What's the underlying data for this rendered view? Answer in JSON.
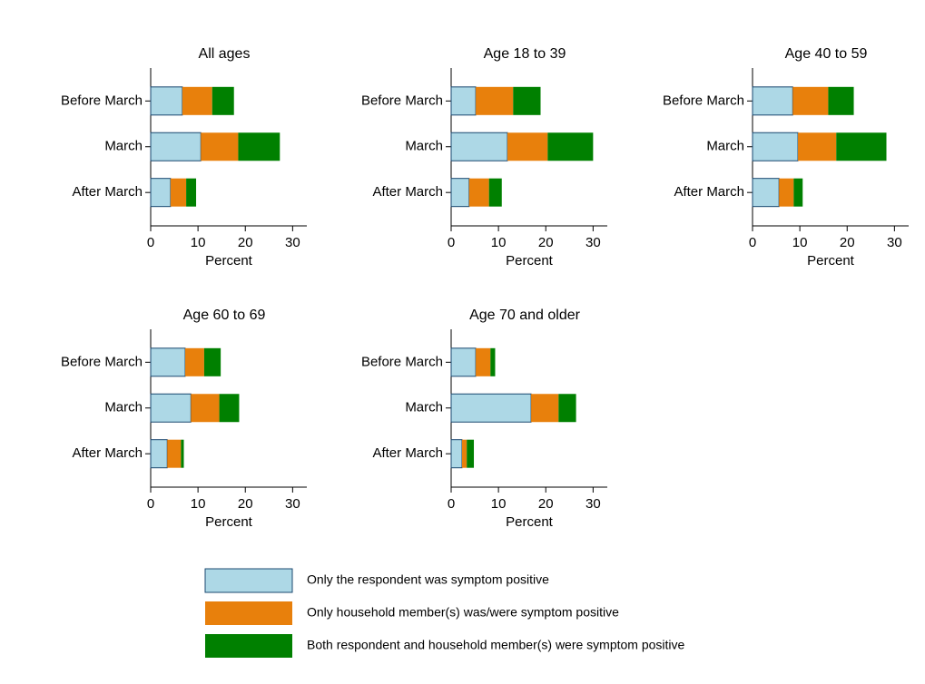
{
  "legend": [
    {
      "name": "Only the respondent was symptom positive",
      "color": "#add8e6",
      "stroke": "#1a476f"
    },
    {
      "name": "Only household member(s) was/were symptom positive",
      "color": "#e8800c"
    },
    {
      "name": "Both respondent and household member(s) were symptom positive",
      "color": "#008000"
    }
  ],
  "chart_data": [
    {
      "type": "bar",
      "orientation": "horizontal",
      "stacked": true,
      "title": "All ages",
      "xlabel": "Percent",
      "categories": [
        "Before March",
        "March",
        "After March"
      ],
      "series": [
        {
          "values": [
            6.7,
            10.6,
            4.2
          ]
        },
        {
          "values": [
            6.3,
            7.9,
            3.3
          ]
        },
        {
          "values": [
            4.6,
            8.8,
            2.1
          ]
        }
      ],
      "xlim": [
        0,
        33
      ],
      "xticks": [
        0,
        10,
        20,
        30
      ]
    },
    {
      "type": "bar",
      "orientation": "horizontal",
      "stacked": true,
      "title": "Age 18 to 39",
      "xlabel": "Percent",
      "categories": [
        "Before March",
        "March",
        "After March"
      ],
      "series": [
        {
          "values": [
            5.2,
            11.9,
            3.8
          ]
        },
        {
          "values": [
            7.9,
            8.5,
            4.2
          ]
        },
        {
          "values": [
            5.8,
            9.6,
            2.7
          ]
        }
      ],
      "xlim": [
        0,
        33
      ],
      "xticks": [
        0,
        10,
        20,
        30
      ]
    },
    {
      "type": "bar",
      "orientation": "horizontal",
      "stacked": true,
      "title": "Age 40 to 59",
      "xlabel": "Percent",
      "categories": [
        "Before March",
        "March",
        "After March"
      ],
      "series": [
        {
          "values": [
            8.5,
            9.6,
            5.6
          ]
        },
        {
          "values": [
            7.5,
            8.1,
            3.1
          ]
        },
        {
          "values": [
            5.4,
            10.6,
            1.9
          ]
        }
      ],
      "xlim": [
        0,
        33
      ],
      "xticks": [
        0,
        10,
        20,
        30
      ]
    },
    {
      "type": "bar",
      "orientation": "horizontal",
      "stacked": true,
      "title": "Age 60 to 69",
      "xlabel": "Percent",
      "categories": [
        "Before March",
        "March",
        "After March"
      ],
      "series": [
        {
          "values": [
            7.3,
            8.5,
            3.5
          ]
        },
        {
          "values": [
            4.0,
            6.0,
            2.9
          ]
        },
        {
          "values": [
            3.5,
            4.2,
            0.6
          ]
        }
      ],
      "xlim": [
        0,
        33
      ],
      "xticks": [
        0,
        10,
        20,
        30
      ]
    },
    {
      "type": "bar",
      "orientation": "horizontal",
      "stacked": true,
      "title": "Age 70 and older",
      "xlabel": "Percent",
      "categories": [
        "Before March",
        "March",
        "After March"
      ],
      "series": [
        {
          "values": [
            5.2,
            16.9,
            2.3
          ]
        },
        {
          "values": [
            3.1,
            5.8,
            1.0
          ]
        },
        {
          "values": [
            1.0,
            3.7,
            1.5
          ]
        }
      ],
      "xlim": [
        0,
        33
      ],
      "xticks": [
        0,
        10,
        20,
        30
      ]
    }
  ]
}
